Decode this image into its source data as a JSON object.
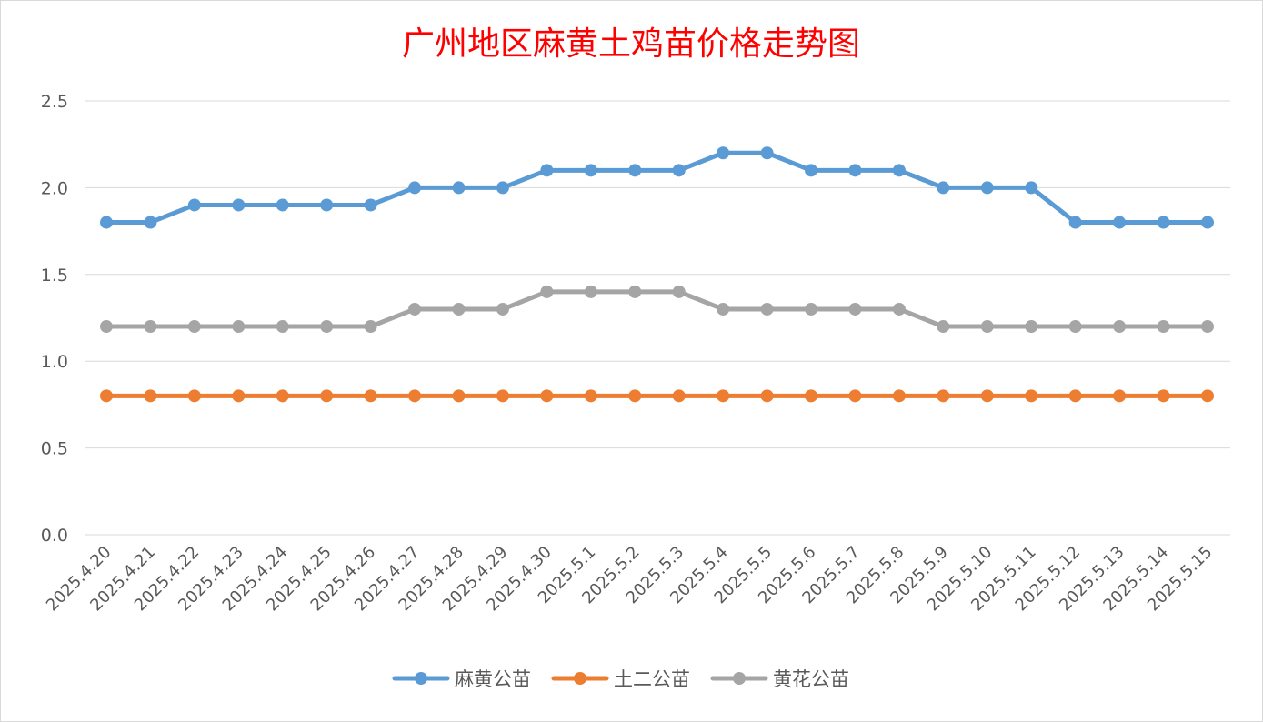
{
  "chart_data": {
    "type": "line",
    "title": "广州地区麻黄土鸡苗价格走势图",
    "xlabel": "",
    "ylabel": "",
    "ylim": [
      0,
      2.5
    ],
    "yticks": [
      "0.0",
      "0.5",
      "1.0",
      "1.5",
      "2.0",
      "2.5"
    ],
    "yticks_values": [
      0,
      0.5,
      1.0,
      1.5,
      2.0,
      2.5
    ],
    "grid": true,
    "legend_position": "bottom",
    "categories": [
      "2025.4.20",
      "2025.4.21",
      "2025.4.22",
      "2025.4.23",
      "2025.4.24",
      "2025.4.25",
      "2025.4.26",
      "2025.4.27",
      "2025.4.28",
      "2025.4.29",
      "2025.4.30",
      "2025.5.1",
      "2025.5.2",
      "2025.5.3",
      "2025.5.4",
      "2025.5.5",
      "2025.5.6",
      "2025.5.7",
      "2025.5.8",
      "2025.5.9",
      "2025.5.10",
      "2025.5.11",
      "2025.5.12",
      "2025.5.13",
      "2025.5.14",
      "2025.5.15"
    ],
    "series": [
      {
        "name": "麻黄公苗",
        "color": "#5b9bd5",
        "values": [
          1.8,
          1.8,
          1.9,
          1.9,
          1.9,
          1.9,
          1.9,
          2.0,
          2.0,
          2.0,
          2.1,
          2.1,
          2.1,
          2.1,
          2.2,
          2.2,
          2.1,
          2.1,
          2.1,
          2.0,
          2.0,
          2.0,
          1.8,
          1.8,
          1.8,
          1.8
        ]
      },
      {
        "name": "土二公苗",
        "color": "#ed7d31",
        "values": [
          0.8,
          0.8,
          0.8,
          0.8,
          0.8,
          0.8,
          0.8,
          0.8,
          0.8,
          0.8,
          0.8,
          0.8,
          0.8,
          0.8,
          0.8,
          0.8,
          0.8,
          0.8,
          0.8,
          0.8,
          0.8,
          0.8,
          0.8,
          0.8,
          0.8,
          0.8
        ]
      },
      {
        "name": "黄花公苗",
        "color": "#a5a5a5",
        "values": [
          1.2,
          1.2,
          1.2,
          1.2,
          1.2,
          1.2,
          1.2,
          1.3,
          1.3,
          1.3,
          1.4,
          1.4,
          1.4,
          1.4,
          1.3,
          1.3,
          1.3,
          1.3,
          1.3,
          1.2,
          1.2,
          1.2,
          1.2,
          1.2,
          1.2,
          1.2
        ]
      }
    ]
  }
}
